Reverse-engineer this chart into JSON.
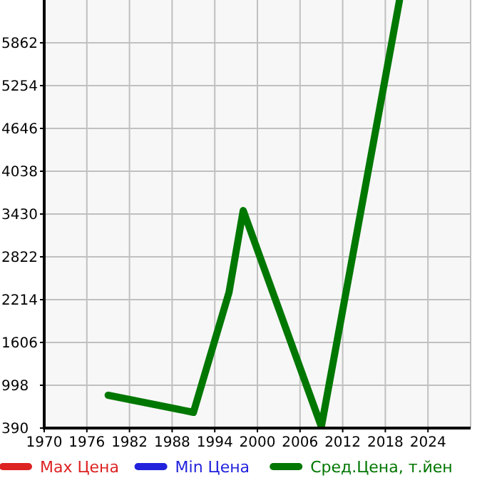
{
  "chart_data": {
    "type": "line",
    "x": [
      1979,
      1991,
      1996,
      1998,
      2009,
      2020
    ],
    "series": [
      {
        "name": "Max Цена",
        "color": "#dd2222",
        "values": [
          null,
          null,
          null,
          null,
          null,
          null
        ]
      },
      {
        "name": "Min Цена",
        "color": "#2222dd",
        "values": [
          null,
          null,
          null,
          null,
          null,
          null
        ]
      },
      {
        "name": "Сред.Цена, т.йен",
        "color": "#007700",
        "values": [
          856,
          613,
          2315,
          3480,
          410,
          6470
        ]
      }
    ],
    "xlim": [
      1970,
      2030
    ],
    "xticks": [
      1970,
      1976,
      1982,
      1988,
      1994,
      2000,
      2006,
      2012,
      2018,
      2024
    ],
    "ylim": [
      390,
      6470
    ],
    "yticks": [
      390,
      998,
      1606,
      2214,
      2822,
      3430,
      4038,
      4646,
      5254,
      5862
    ],
    "grid": true,
    "legend": "bottom",
    "marker": "none",
    "line_style": "solid"
  }
}
